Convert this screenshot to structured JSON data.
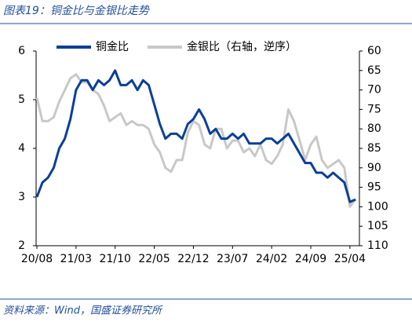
{
  "chart_data": {
    "type": "line",
    "title": "图表19：铜金比与金银比走势",
    "source": "资料来源：Wind，国盛证券研究所",
    "categories": [
      "20/08",
      null,
      null,
      null,
      null,
      null,
      null,
      "21/03",
      null,
      null,
      null,
      null,
      null,
      null,
      "21/10",
      null,
      null,
      null,
      null,
      null,
      null,
      "22/05",
      null,
      null,
      null,
      null,
      null,
      null,
      "22/12",
      null,
      null,
      null,
      null,
      null,
      null,
      "23/07",
      null,
      null,
      null,
      null,
      null,
      null,
      "24/02",
      null,
      null,
      null,
      null,
      null,
      null,
      "24/09",
      null,
      null,
      null,
      null,
      null,
      null,
      "25/04",
      null
    ],
    "series": [
      {
        "name": "铜金比",
        "color": "#0a3f99",
        "axis": "y",
        "values": [
          3.0,
          3.3,
          3.4,
          3.6,
          4.0,
          4.2,
          4.6,
          5.2,
          5.4,
          5.4,
          5.2,
          5.4,
          5.3,
          5.4,
          5.6,
          5.3,
          5.3,
          5.4,
          5.2,
          5.4,
          5.3,
          4.9,
          4.5,
          4.2,
          4.3,
          4.3,
          4.2,
          4.5,
          4.6,
          4.8,
          4.6,
          4.3,
          4.4,
          4.2,
          4.2,
          4.3,
          4.2,
          4.3,
          4.1,
          4.1,
          4.1,
          4.2,
          4.2,
          4.1,
          4.2,
          4.3,
          4.1,
          3.9,
          3.7,
          3.7,
          3.5,
          3.5,
          3.4,
          3.5,
          3.4,
          3.3,
          2.9,
          2.95
        ]
      },
      {
        "name": "金银比（右轴，逆序）",
        "color": "#c8c8c8",
        "axis": "y2",
        "values": [
          72,
          78,
          78,
          77,
          73,
          70,
          67,
          66,
          68,
          68,
          70,
          71,
          74,
          78,
          77,
          76,
          79,
          78,
          79,
          79,
          80,
          84,
          86,
          90,
          91,
          88,
          88,
          81,
          78,
          79,
          84,
          85,
          80,
          80,
          85,
          83,
          83,
          86,
          85,
          87,
          84,
          88,
          89,
          87,
          84,
          75,
          78,
          83,
          88,
          84,
          82,
          88,
          90,
          89,
          88,
          90,
          100,
          98
        ]
      }
    ],
    "ylim": [
      2,
      6
    ],
    "yticks": [
      2,
      3,
      4,
      5,
      6
    ],
    "y2lim": [
      60,
      110
    ],
    "y2ticks": [
      60,
      65,
      70,
      75,
      80,
      85,
      90,
      95,
      100,
      105,
      110
    ],
    "y2_inverted": true,
    "grid": false,
    "legend": "top"
  }
}
